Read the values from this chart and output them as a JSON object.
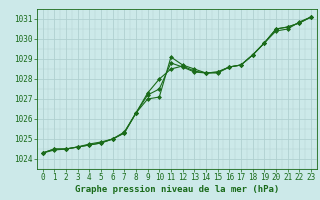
{
  "xlabel": "Graphe pression niveau de la mer (hPa)",
  "ylim": [
    1023.8,
    1031.5
  ],
  "xlim": [
    -0.5,
    23.5
  ],
  "yticks": [
    1024,
    1025,
    1026,
    1027,
    1028,
    1029,
    1030,
    1031
  ],
  "xticks": [
    0,
    1,
    2,
    3,
    4,
    5,
    6,
    7,
    8,
    9,
    10,
    11,
    12,
    13,
    14,
    15,
    16,
    17,
    18,
    19,
    20,
    21,
    22,
    23
  ],
  "background_color": "#cce9e9",
  "grid_color": "#b0d0d0",
  "line_color": "#1a6b1a",
  "series": [
    [
      1024.3,
      1024.5,
      1024.5,
      1024.6,
      1024.7,
      1024.8,
      1025.0,
      1025.3,
      1026.3,
      1027.0,
      1027.1,
      1029.1,
      1028.7,
      1028.5,
      1028.3,
      1028.35,
      1028.6,
      1028.7,
      1029.2,
      1029.8,
      1030.5,
      1030.6,
      1030.8,
      1031.1
    ],
    [
      1024.3,
      1024.5,
      1024.5,
      1024.6,
      1024.7,
      1024.8,
      1025.0,
      1025.35,
      1026.3,
      1027.2,
      1027.5,
      1028.8,
      1028.6,
      1028.35,
      1028.3,
      1028.35,
      1028.6,
      1028.7,
      1029.2,
      1029.8,
      1030.5,
      1030.6,
      1030.8,
      1031.1
    ],
    [
      1024.3,
      1024.45,
      1024.5,
      1024.6,
      1024.75,
      1024.85,
      1025.0,
      1025.3,
      1026.3,
      1027.3,
      1028.0,
      1028.5,
      1028.65,
      1028.4,
      1028.3,
      1028.3,
      1028.6,
      1028.7,
      1029.2,
      1029.8,
      1030.4,
      1030.5,
      1030.85,
      1031.1
    ]
  ],
  "marker": "D",
  "markersize": 2.0,
  "linewidth": 0.8,
  "fontsize_label": 6.5,
  "fontsize_tick": 5.5
}
